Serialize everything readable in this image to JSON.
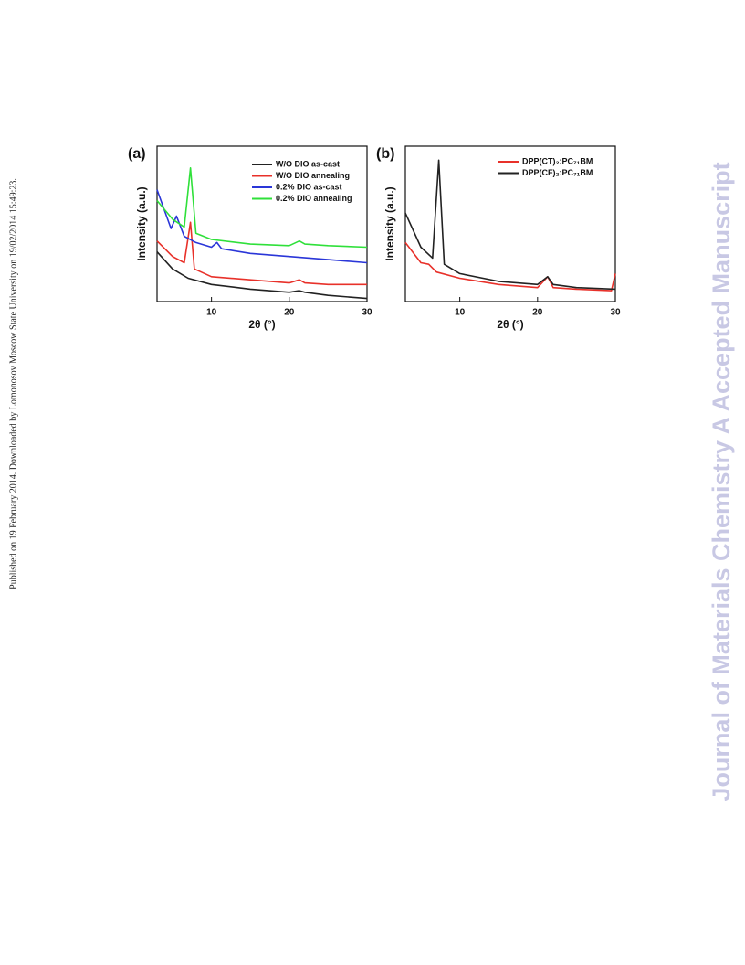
{
  "side_note": "Published on 19 February 2014. Downloaded by Lomonosov Moscow State University on 19/02/2014 15:49:23.",
  "watermark": "Journal of Materials Chemistry A Accepted Manuscript",
  "chart_data": [
    {
      "type": "line",
      "title": "(a)",
      "xlabel": "2θ (°)",
      "ylabel": "Intensity (a.u.)",
      "xlim": [
        3,
        30
      ],
      "xticks": [
        10,
        20,
        30
      ],
      "ylim": [
        0,
        100
      ],
      "legend": "upper right",
      "series": [
        {
          "name": "W/O DIO as-cast",
          "color": "#222222",
          "x": [
            3,
            5,
            7,
            10,
            15,
            20,
            21.3,
            22,
            25,
            30
          ],
          "values": [
            32,
            21,
            15,
            11,
            8,
            6,
            7,
            6,
            4,
            2
          ]
        },
        {
          "name": "W/O DIO annealing",
          "color": "#e8312a",
          "x": [
            3,
            5,
            6.5,
            7.3,
            7.8,
            10,
            15,
            20,
            21.3,
            22,
            25,
            30
          ],
          "values": [
            39,
            29,
            25,
            51,
            21,
            16,
            14,
            12,
            14,
            12,
            11,
            11
          ]
        },
        {
          "name": "0.2% DIO as-cast",
          "color": "#2a36d8",
          "x": [
            3,
            4.8,
            5.5,
            6.5,
            8,
            10,
            10.7,
            11.3,
            15,
            20,
            25,
            30
          ],
          "values": [
            72,
            47,
            55,
            42,
            38,
            35,
            38,
            34,
            31,
            29,
            27,
            25
          ]
        },
        {
          "name": "0.2% DIO annealing",
          "color": "#2fe03a",
          "x": [
            3,
            5,
            6.5,
            7.3,
            8,
            10,
            15,
            20,
            21.3,
            22,
            25,
            30
          ],
          "values": [
            65,
            53,
            48,
            86,
            44,
            40,
            37,
            36,
            39,
            37,
            36,
            35
          ]
        }
      ]
    },
    {
      "type": "line",
      "title": "(b)",
      "xlabel": "2θ (°)",
      "ylabel": "Intensity (a.u.)",
      "xlim": [
        3,
        30
      ],
      "xticks": [
        10,
        20,
        30
      ],
      "ylim": [
        0,
        100
      ],
      "legend": "upper right",
      "series": [
        {
          "name": "DPP(CT)₂:PC₇₁BM",
          "color": "#e8312a",
          "x": [
            3,
            5,
            6,
            7,
            10,
            15,
            20,
            21.3,
            22,
            25,
            29.5,
            30
          ],
          "values": [
            38,
            25,
            24,
            19,
            15,
            11,
            9,
            16,
            9,
            8,
            7,
            18
          ]
        },
        {
          "name": "DPP(CF)₂:PC₇₁BM",
          "color": "#222222",
          "x": [
            3,
            5,
            6.5,
            7.3,
            8,
            10,
            15,
            20,
            21.3,
            22,
            25,
            30
          ],
          "values": [
            57,
            35,
            28,
            91,
            24,
            18,
            13,
            11,
            16,
            11,
            9,
            8
          ]
        }
      ]
    }
  ]
}
